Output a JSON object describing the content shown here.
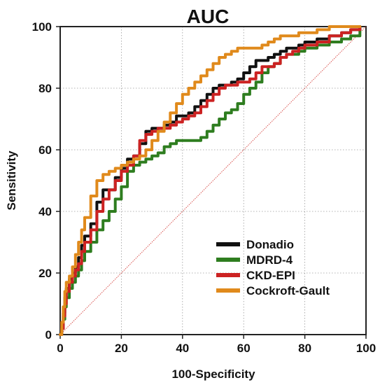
{
  "chart_data": {
    "type": "line",
    "title": "AUC",
    "xlabel": "100-Specificity",
    "ylabel": "Sensitivity",
    "xlim": [
      0,
      100
    ],
    "ylim": [
      0,
      100
    ],
    "xticks": [
      0,
      20,
      40,
      60,
      80,
      100
    ],
    "yticks": [
      0,
      20,
      40,
      60,
      80,
      100
    ],
    "grid": true,
    "legend_position": "bottom-right",
    "reference_line": {
      "x": [
        0,
        100
      ],
      "y": [
        0,
        100
      ],
      "color": "#d9534f"
    },
    "series": [
      {
        "name": "Donadio",
        "color": "#111111",
        "x": [
          0,
          0.5,
          1,
          1.5,
          2,
          3,
          4,
          5,
          6,
          7,
          8,
          10,
          12,
          14,
          16,
          18,
          20,
          22,
          24,
          26,
          28,
          30,
          32,
          34,
          36,
          38,
          40,
          42,
          44,
          46,
          48,
          50,
          52,
          54,
          56,
          58,
          60,
          62,
          64,
          66,
          68,
          70,
          72,
          74,
          76,
          78,
          80,
          84,
          88,
          92,
          95,
          98
        ],
        "y": [
          0,
          3,
          7,
          12,
          15,
          18,
          20,
          22,
          25,
          29,
          32,
          36,
          43,
          47,
          47,
          51,
          54,
          57,
          58,
          62,
          66,
          67,
          67,
          68,
          69,
          71,
          71,
          72,
          74,
          76,
          78,
          80,
          81,
          81,
          82,
          83,
          85,
          87,
          89,
          89,
          90,
          91,
          92,
          93,
          93,
          94,
          95,
          96,
          97,
          98,
          99,
          100
        ]
      },
      {
        "name": "MDRD-4",
        "color": "#2e7d1f",
        "x": [
          0,
          0.5,
          1,
          1.5,
          2,
          3,
          4,
          5,
          6,
          7,
          8,
          10,
          12,
          14,
          16,
          18,
          20,
          22,
          24,
          26,
          28,
          30,
          32,
          34,
          36,
          38,
          40,
          42,
          44,
          46,
          48,
          50,
          52,
          54,
          56,
          58,
          60,
          62,
          64,
          66,
          68,
          70,
          72,
          74,
          76,
          78,
          80,
          84,
          88,
          92,
          95,
          98
        ],
        "y": [
          0,
          2,
          5,
          9,
          12,
          15,
          17,
          19,
          21,
          24,
          27,
          30,
          34,
          37,
          40,
          44,
          48,
          53,
          55,
          56,
          57,
          58,
          59,
          61,
          62,
          63,
          63,
          63,
          63,
          64,
          66,
          68,
          70,
          72,
          73,
          75,
          78,
          80,
          82,
          85,
          87,
          88,
          90,
          91,
          91,
          92,
          93,
          94,
          95,
          96,
          97,
          100
        ]
      },
      {
        "name": "CKD-EPI",
        "color": "#cc2222",
        "x": [
          0,
          0.5,
          1,
          1.5,
          2,
          3,
          4,
          5,
          6,
          7,
          8,
          10,
          12,
          14,
          16,
          18,
          20,
          22,
          24,
          26,
          28,
          30,
          32,
          34,
          36,
          38,
          40,
          42,
          44,
          46,
          48,
          50,
          52,
          54,
          56,
          58,
          60,
          62,
          64,
          66,
          68,
          70,
          72,
          74,
          76,
          78,
          80,
          84,
          88,
          92,
          95,
          98
        ],
        "y": [
          0,
          2,
          6,
          10,
          14,
          17,
          19,
          21,
          23,
          27,
          30,
          34,
          40,
          44,
          47,
          50,
          53,
          55,
          58,
          63,
          65,
          66,
          67,
          67,
          68,
          69,
          70,
          71,
          72,
          74,
          76,
          78,
          80,
          81,
          81,
          82,
          82,
          83,
          85,
          87,
          87,
          88,
          90,
          91,
          92,
          93,
          94,
          95,
          97,
          98,
          99,
          100
        ]
      },
      {
        "name": "Cockroft-Gault",
        "color": "#e08a1c",
        "x": [
          0,
          0.5,
          1,
          1.5,
          2,
          3,
          4,
          5,
          6,
          7,
          8,
          10,
          12,
          14,
          16,
          18,
          20,
          22,
          24,
          26,
          28,
          30,
          32,
          34,
          36,
          38,
          40,
          42,
          44,
          46,
          48,
          50,
          52,
          54,
          56,
          58,
          60,
          62,
          64,
          66,
          68,
          70,
          72,
          74,
          76,
          78,
          80,
          84,
          88,
          92,
          95,
          98
        ],
        "y": [
          0,
          4,
          9,
          14,
          17,
          19,
          22,
          26,
          30,
          34,
          38,
          45,
          50,
          52,
          53,
          54,
          55,
          56,
          57,
          58,
          60,
          63,
          66,
          69,
          72,
          75,
          78,
          80,
          82,
          84,
          86,
          88,
          90,
          91,
          92,
          93,
          93,
          93,
          93,
          94,
          95,
          96,
          97,
          97,
          97,
          98,
          98,
          99,
          100,
          100,
          100,
          100
        ]
      }
    ]
  }
}
